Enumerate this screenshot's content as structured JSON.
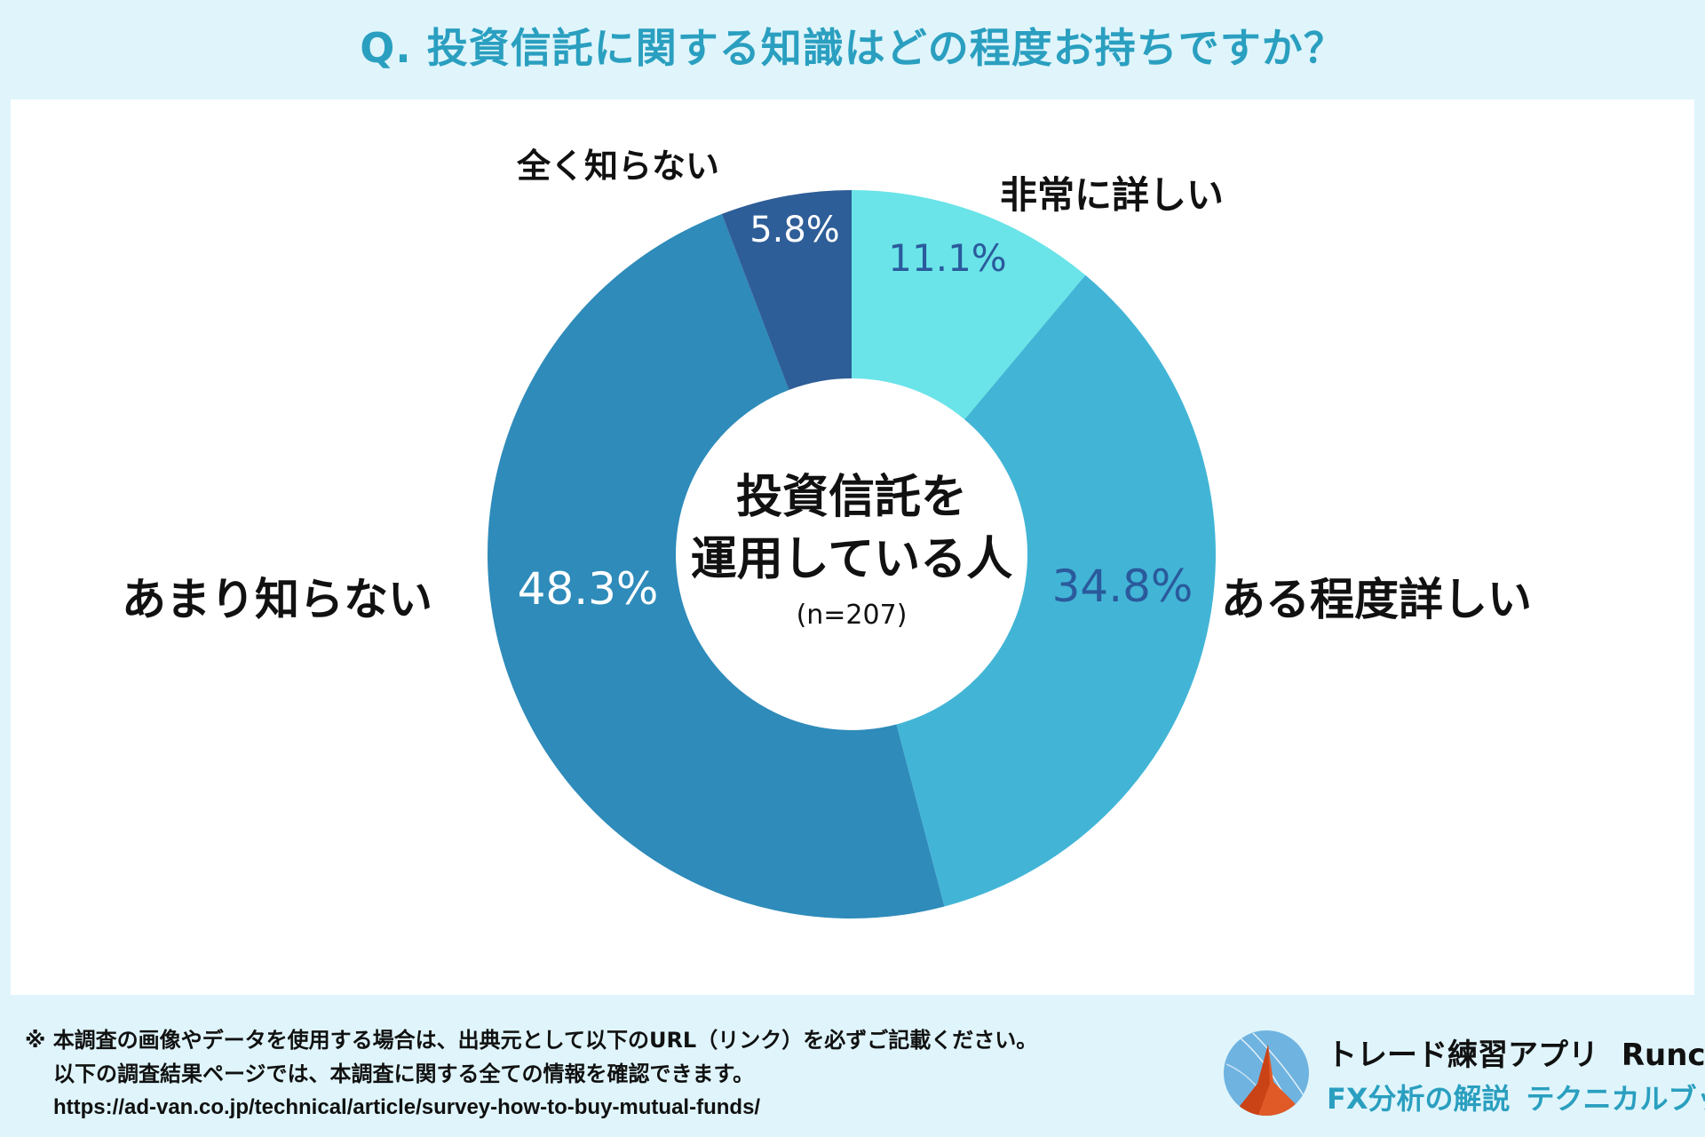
{
  "page": {
    "title": "Q. 投資信託に関する知識はどの程度お持ちですか？"
  },
  "chart_data": {
    "type": "pie",
    "style": "donut",
    "title": "Q. 投資信託に関する知識はどの程度お持ちですか？",
    "center_label": [
      "投資信託を",
      "運用している人"
    ],
    "sample_size": "(n=207)",
    "slices": [
      {
        "label": "非常に詳しい",
        "value": 11.1,
        "display": "11.1%",
        "color": "#6ae4e8",
        "label_color": "#2a5a9c"
      },
      {
        "label": "ある程度詳しい",
        "value": 34.8,
        "display": "34.8%",
        "color": "#42b5d6",
        "label_color": "#2a5a9c"
      },
      {
        "label": "あまり知らない",
        "value": 48.3,
        "display": "48.3%",
        "color": "#2e8bba",
        "label_color": "#ffffff"
      },
      {
        "label": "全く知らない",
        "value": 5.8,
        "display": "5.8%",
        "color": "#2e5e98",
        "label_color": "#ffffff"
      }
    ]
  },
  "footer": {
    "line1": "※ 本調査の画像やデータを使用する場合は、出典元として以下のURL（リンク）を必ずご記載ください。",
    "line2": "以下の調査結果ページでは、本調査に関する全ての情報を確認できます。",
    "url": "https://ad-van.co.jp/technical/article/survey-how-to-buy-mutual-funds/"
  },
  "brand": {
    "app_name": "トレード練習アプリ",
    "app_name_en": "Runcha",
    "sub1": "FX分析の解説",
    "sub2": "テクニカルブック"
  }
}
